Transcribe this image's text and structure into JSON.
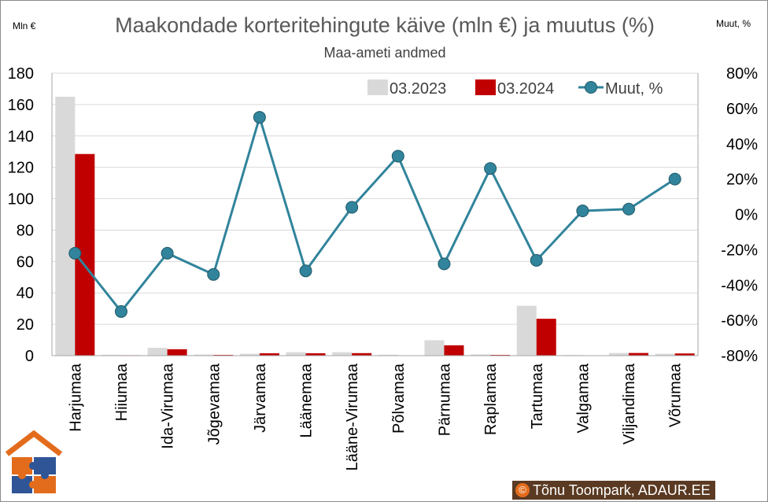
{
  "chart_data": {
    "type": "bar",
    "title": "Maakondade korteritehingute käive (mln €) ja muutus (%)",
    "subtitle": "Maa-ameti andmed",
    "y_left_label": "Mln €",
    "y_right_label": "Muut, %",
    "y_left_range": [
      0,
      180
    ],
    "y_left_ticks": [
      "180",
      "160",
      "140",
      "120",
      "100",
      "80",
      "60",
      "40",
      "20",
      "0"
    ],
    "y_right_range": [
      -80,
      80
    ],
    "y_right_ticks": [
      "80%",
      "60%",
      "40%",
      "20%",
      "0%",
      "-20%",
      "-40%",
      "-60%",
      "-80%"
    ],
    "grid": true,
    "legend_position": "top-right",
    "categories": [
      "Harjumaa",
      "Hiiumaa",
      "Ida-Virumaa",
      "Jõgevamaa",
      "Järvamaa",
      "Läänemaa",
      "Lääne-Virumaa",
      "Põlvamaa",
      "Pärnumaa",
      "Raplamaa",
      "Tartumaa",
      "Valgamaa",
      "Viljandimaa",
      "Võrumaa"
    ],
    "series": [
      {
        "name": "03.2023",
        "type": "bar",
        "axis": "left",
        "color": "#d9d9d9",
        "values": [
          165,
          0.6,
          5,
          0.7,
          1.2,
          2.2,
          2.2,
          0.6,
          9.8,
          0.8,
          31.8,
          0.4,
          1.7,
          1.2
        ]
      },
      {
        "name": "03.2024",
        "type": "bar",
        "axis": "left",
        "color": "#c00000",
        "values": [
          128.5,
          0.3,
          4.1,
          0.5,
          1.5,
          1.5,
          1.6,
          0.2,
          6.6,
          0.5,
          23.5,
          0.1,
          1.7,
          1.4
        ]
      },
      {
        "name": "Muut, %",
        "type": "line",
        "axis": "right",
        "color": "#31849b",
        "values": [
          -22,
          -55,
          -22,
          -34,
          55,
          -32,
          4,
          33,
          -28,
          26,
          -26,
          2,
          3,
          20
        ]
      }
    ]
  },
  "footer": {
    "copyright_symbol": "©",
    "copyright_text": "Tõnu Toompark, ADAUR.EE",
    "logo_icon": "house-puzzle-logo-icon"
  }
}
